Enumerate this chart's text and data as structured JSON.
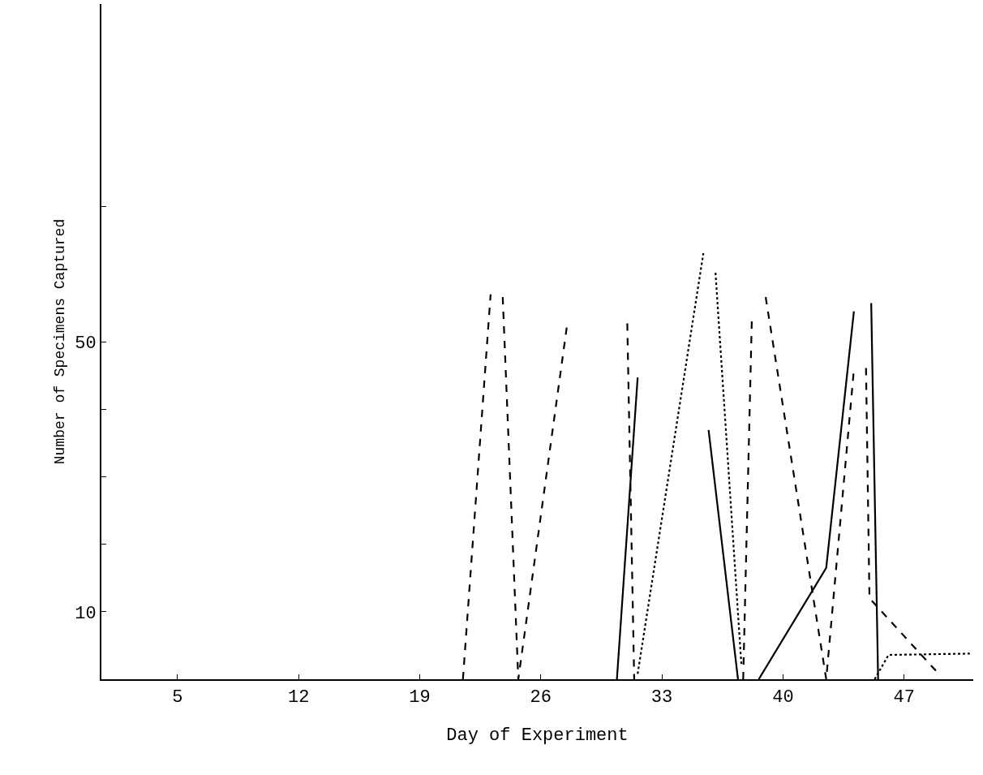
{
  "chart_data": {
    "type": "line",
    "xlabel": "Day of Experiment",
    "ylabel": "Number of Specimens Captured",
    "xlim": [
      0.6,
      51
    ],
    "xticks": [
      5,
      12,
      19,
      26,
      33,
      40,
      47
    ],
    "ylim": [
      0,
      100
    ],
    "yticks": [
      {
        "value": 10,
        "label": "10"
      },
      {
        "value": 20,
        "label": null
      },
      {
        "value": 30,
        "label": null
      },
      {
        "value": 40,
        "label": null
      },
      {
        "value": 50,
        "label": "50"
      },
      {
        "value": 70,
        "label": null
      }
    ],
    "marker": "none",
    "series": [
      {
        "color": "#000000",
        "line_style": "dashed",
        "x": [
          21.5,
          23.1,
          23.4,
          23.8,
          24.7,
          27.5,
          29.0,
          31.0,
          31.4,
          34.0,
          37.7,
          38.2,
          38.6,
          39.0,
          42.5,
          44.1,
          44.5,
          44.8,
          45.0,
          49.0
        ],
        "values": [
          0,
          57.0,
          null,
          56.6,
          0,
          52.1,
          null,
          52.7,
          0,
          null,
          0,
          53.3,
          null,
          56.6,
          0,
          45.9,
          null,
          46.1,
          12.0,
          0.8
        ]
      },
      {
        "color": "#000000",
        "line_style": "solid",
        "x": [
          30.4,
          31.6,
          33.0,
          35.7,
          37.4,
          38.0,
          38.6,
          42.5,
          44.1,
          44.6,
          45.1,
          45.5
        ],
        "values": [
          0,
          44.7,
          null,
          36.9,
          0,
          null,
          0,
          16.5,
          54.5,
          null,
          55.7,
          0
        ]
      },
      {
        "color": "#000000",
        "line_style": "dotted",
        "x": [
          31.6,
          35.4,
          35.8,
          36.1,
          37.6,
          40.0,
          45.3,
          46.1,
          50.8
        ],
        "values": [
          0.8,
          63.1,
          null,
          60.2,
          2.0,
          null,
          0,
          3.6,
          3.8
        ]
      }
    ]
  }
}
